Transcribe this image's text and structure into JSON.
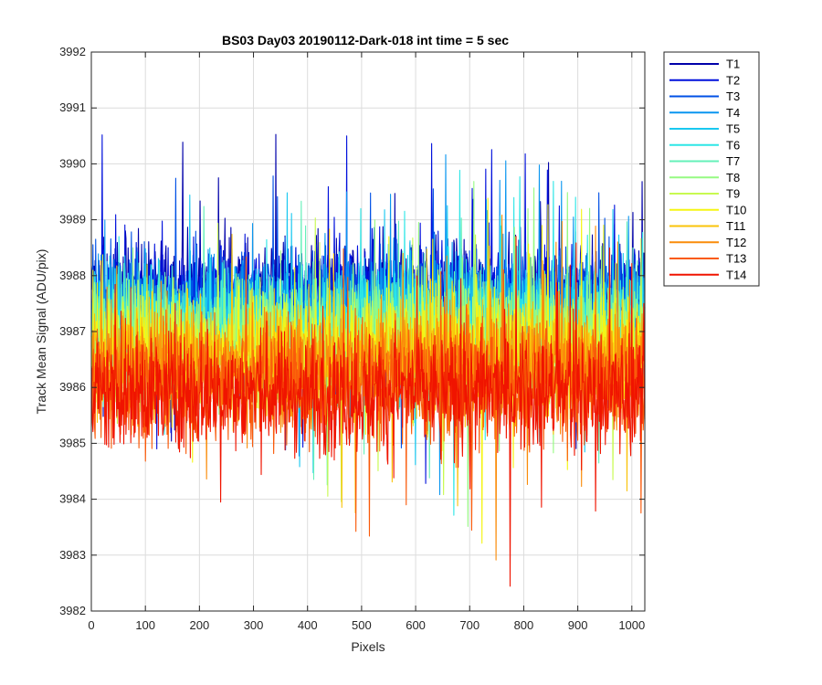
{
  "chart_data": {
    "type": "line",
    "title": "BS03 Day03 20190112-Dark-018 int time = 5 sec",
    "xlabel": "Pixels",
    "ylabel": "Track Mean Signal (ADU/pix)",
    "xlim": [
      0,
      1024
    ],
    "ylim": [
      3982,
      3992
    ],
    "xticks": [
      0,
      100,
      200,
      300,
      400,
      500,
      600,
      700,
      800,
      900,
      1000
    ],
    "yticks": [
      3982,
      3983,
      3984,
      3985,
      3986,
      3987,
      3988,
      3989,
      3990,
      3991,
      3992
    ],
    "grid": true,
    "legend_position": "outside-top-right",
    "n_points": 1024,
    "series": [
      {
        "name": "T1",
        "color": "#0000AA",
        "mean": 3987.7,
        "spread": 0.85
      },
      {
        "name": "T2",
        "color": "#0010DC",
        "mean": 3987.6,
        "spread": 0.85
      },
      {
        "name": "T3",
        "color": "#0050E6",
        "mean": 3987.5,
        "spread": 0.85
      },
      {
        "name": "T4",
        "color": "#0A96F0",
        "mean": 3987.4,
        "spread": 0.85
      },
      {
        "name": "T5",
        "color": "#19C8F0",
        "mean": 3987.2,
        "spread": 0.85
      },
      {
        "name": "T6",
        "color": "#2DE6E6",
        "mean": 3987.1,
        "spread": 0.9
      },
      {
        "name": "T7",
        "color": "#64F0B9",
        "mean": 3987.0,
        "spread": 0.9
      },
      {
        "name": "T8",
        "color": "#96FA82",
        "mean": 3986.9,
        "spread": 0.9
      },
      {
        "name": "T9",
        "color": "#C8FA50",
        "mean": 3986.7,
        "spread": 0.9
      },
      {
        "name": "T10",
        "color": "#F5F514",
        "mean": 3986.6,
        "spread": 0.9
      },
      {
        "name": "T11",
        "color": "#FAC30A",
        "mean": 3986.5,
        "spread": 0.9
      },
      {
        "name": "T12",
        "color": "#FA8C0A",
        "mean": 3986.3,
        "spread": 0.9
      },
      {
        "name": "T13",
        "color": "#FA5A0A",
        "mean": 3986.1,
        "spread": 0.95
      },
      {
        "name": "T14",
        "color": "#F01400",
        "mean": 3985.9,
        "spread": 0.95
      }
    ]
  }
}
